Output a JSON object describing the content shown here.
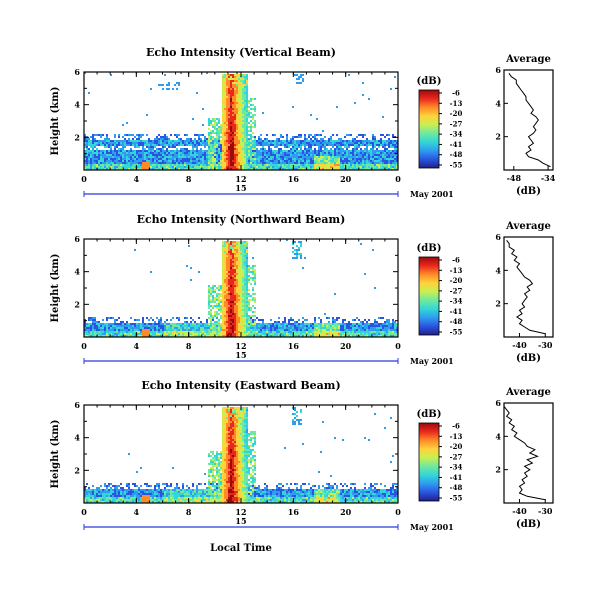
{
  "chart_data": [
    {
      "type": "heatmap",
      "title": "Echo Intensity (Vertical Beam)",
      "ylabel": "Height (km)",
      "x_ticks": [
        "0",
        "4",
        "8",
        "12",
        "16",
        "20",
        "0"
      ],
      "y_ticks": [
        "6",
        "4",
        "2"
      ],
      "date_marker": "15",
      "date_label": "May 2001",
      "colorbar_unit": "(dB)",
      "colorbar_ticks": [
        "-6",
        "-13",
        "-20",
        "-27",
        "-34",
        "-41",
        "-48",
        "-55"
      ],
      "xlim": [
        0,
        24
      ],
      "ylim": [
        0,
        6
      ],
      "profile": {
        "title": "Average",
        "xlabel": "(dB)",
        "x_ticks": [
          "-48",
          "-34"
        ],
        "y_ticks": [
          "6",
          "4",
          "2"
        ],
        "xlim": [
          -52,
          -32
        ],
        "ylim": [
          0,
          6
        ],
        "heights": [
          0.2,
          0.4,
          0.6,
          0.8,
          1.0,
          1.2,
          1.4,
          1.6,
          1.8,
          2.0,
          2.2,
          2.4,
          2.6,
          2.8,
          3.0,
          3.2,
          3.4,
          3.6,
          3.8,
          4.0,
          4.2,
          4.4,
          4.6,
          4.8,
          5.0,
          5.2,
          5.4,
          5.6,
          5.8
        ],
        "values": [
          -33,
          -36,
          -38,
          -42,
          -43,
          -41,
          -42,
          -40,
          -41,
          -42,
          -40,
          -39,
          -40,
          -39,
          -38,
          -39,
          -41,
          -40,
          -41,
          -42,
          -43,
          -43,
          -44,
          -45,
          -46,
          -47,
          -47,
          -49,
          -50
        ]
      }
    },
    {
      "type": "heatmap",
      "title": "Echo Intensity (Northward Beam)",
      "ylabel": "Height (km)",
      "x_ticks": [
        "0",
        "4",
        "8",
        "12",
        "16",
        "20",
        "0"
      ],
      "y_ticks": [
        "6",
        "4",
        "2"
      ],
      "date_marker": "15",
      "date_label": "May 2001",
      "colorbar_unit": "(dB)",
      "colorbar_ticks": [
        "-6",
        "-13",
        "-20",
        "-27",
        "-34",
        "-41",
        "-48",
        "-55"
      ],
      "xlim": [
        0,
        24
      ],
      "ylim": [
        0,
        6
      ],
      "profile": {
        "title": "Average",
        "xlabel": "(dB)",
        "x_ticks": [
          "-40",
          "-30"
        ],
        "y_ticks": [
          "6",
          "4",
          "2"
        ],
        "xlim": [
          -46,
          -27
        ],
        "ylim": [
          0,
          6
        ],
        "heights": [
          0.2,
          0.4,
          0.6,
          0.8,
          1.0,
          1.2,
          1.4,
          1.6,
          1.8,
          2.0,
          2.2,
          2.4,
          2.6,
          2.8,
          3.0,
          3.2,
          3.4,
          3.6,
          3.8,
          4.0,
          4.2,
          4.4,
          4.6,
          4.8,
          5.0,
          5.2,
          5.4,
          5.6,
          5.8
        ],
        "values": [
          -30,
          -36,
          -38,
          -40,
          -39,
          -41,
          -39,
          -40,
          -38,
          -39,
          -38,
          -37,
          -38,
          -36,
          -37,
          -35,
          -36,
          -38,
          -39,
          -40,
          -41,
          -40,
          -42,
          -41,
          -43,
          -42,
          -44,
          -44,
          -45
        ]
      }
    },
    {
      "type": "heatmap",
      "title": "Echo Intensity (Eastward Beam)",
      "ylabel": "Height (km)",
      "x_ticks": [
        "0",
        "4",
        "8",
        "12",
        "16",
        "20",
        "0"
      ],
      "y_ticks": [
        "6",
        "4",
        "2"
      ],
      "date_marker": "15",
      "date_label": "May 2001",
      "xlabel": "Local Time",
      "colorbar_unit": "(dB)",
      "colorbar_ticks": [
        "-6",
        "-13",
        "-20",
        "-27",
        "-34",
        "-41",
        "-48",
        "-55"
      ],
      "xlim": [
        0,
        24
      ],
      "ylim": [
        0,
        6
      ],
      "profile": {
        "title": "Average",
        "xlabel": "(dB)",
        "x_ticks": [
          "-40",
          "-30"
        ],
        "y_ticks": [
          "6",
          "4",
          "2"
        ],
        "xlim": [
          -46,
          -27
        ],
        "ylim": [
          0,
          6
        ],
        "heights": [
          0.2,
          0.4,
          0.6,
          0.8,
          1.0,
          1.2,
          1.4,
          1.6,
          1.8,
          2.0,
          2.2,
          2.4,
          2.6,
          2.8,
          3.0,
          3.2,
          3.4,
          3.6,
          3.8,
          4.0,
          4.2,
          4.4,
          4.6,
          4.8,
          5.0,
          5.2,
          5.4,
          5.6,
          5.8
        ],
        "values": [
          -30,
          -37,
          -40,
          -39,
          -40,
          -38,
          -39,
          -37,
          -38,
          -36,
          -38,
          -35,
          -37,
          -33,
          -36,
          -34,
          -37,
          -38,
          -40,
          -42,
          -41,
          -43,
          -42,
          -44,
          -43,
          -45,
          -44,
          -45,
          -46
        ]
      }
    }
  ],
  "colors": {
    "scale": [
      "#20208a",
      "#2a55e0",
      "#2f9cf0",
      "#33d6d6",
      "#6ee8a0",
      "#c8f050",
      "#ffd23c",
      "#ff8a28",
      "#e8281e",
      "#9e0a0a"
    ]
  }
}
